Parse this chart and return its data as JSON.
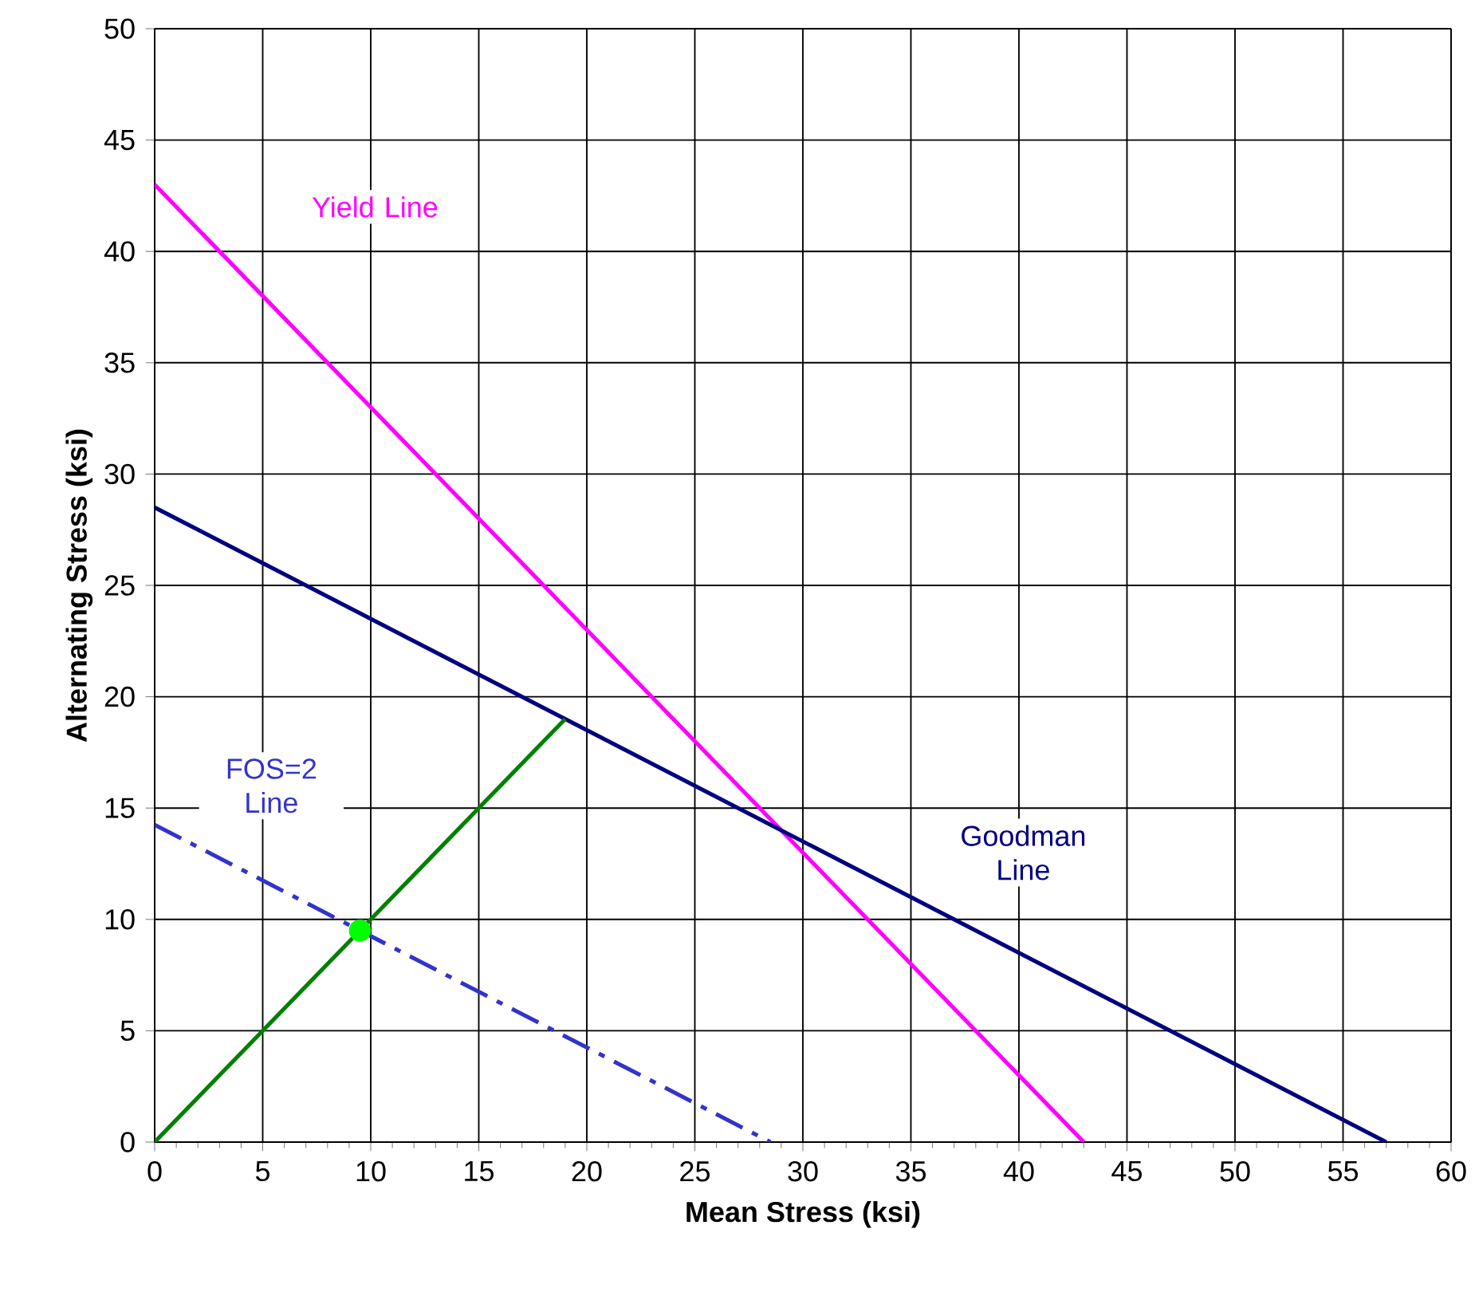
{
  "chart_data": {
    "type": "line",
    "xlabel": "Mean Stress  (ksi)",
    "ylabel": "Alternating Stress  (ksi)",
    "xlim": [
      0,
      60
    ],
    "ylim": [
      0,
      50
    ],
    "xticks": [
      0,
      5,
      10,
      15,
      20,
      25,
      30,
      35,
      40,
      45,
      50,
      55,
      60
    ],
    "yticks": [
      0,
      5,
      10,
      15,
      20,
      25,
      30,
      35,
      40,
      45,
      50
    ],
    "grid": true,
    "legend": false,
    "series": [
      {
        "name": "Yield Line",
        "color": "#ff00ff",
        "x": [
          0,
          43
        ],
        "values": [
          43,
          0
        ]
      },
      {
        "name": "Goodman Line",
        "color": "#000080",
        "x": [
          0,
          57
        ],
        "values": [
          28.5,
          0
        ]
      },
      {
        "name": "FOS=2 Line",
        "color": "#3333cc",
        "x": [
          0,
          28.5
        ],
        "values": [
          14.25,
          0
        ],
        "line_style": "dashdot"
      },
      {
        "color": "#008000",
        "x": [
          0,
          19
        ],
        "values": [
          0,
          19
        ]
      },
      {
        "type": "scatter",
        "color": "#00ff00",
        "x": [
          9.5
        ],
        "values": [
          9.5
        ],
        "marker": "circle"
      }
    ]
  }
}
